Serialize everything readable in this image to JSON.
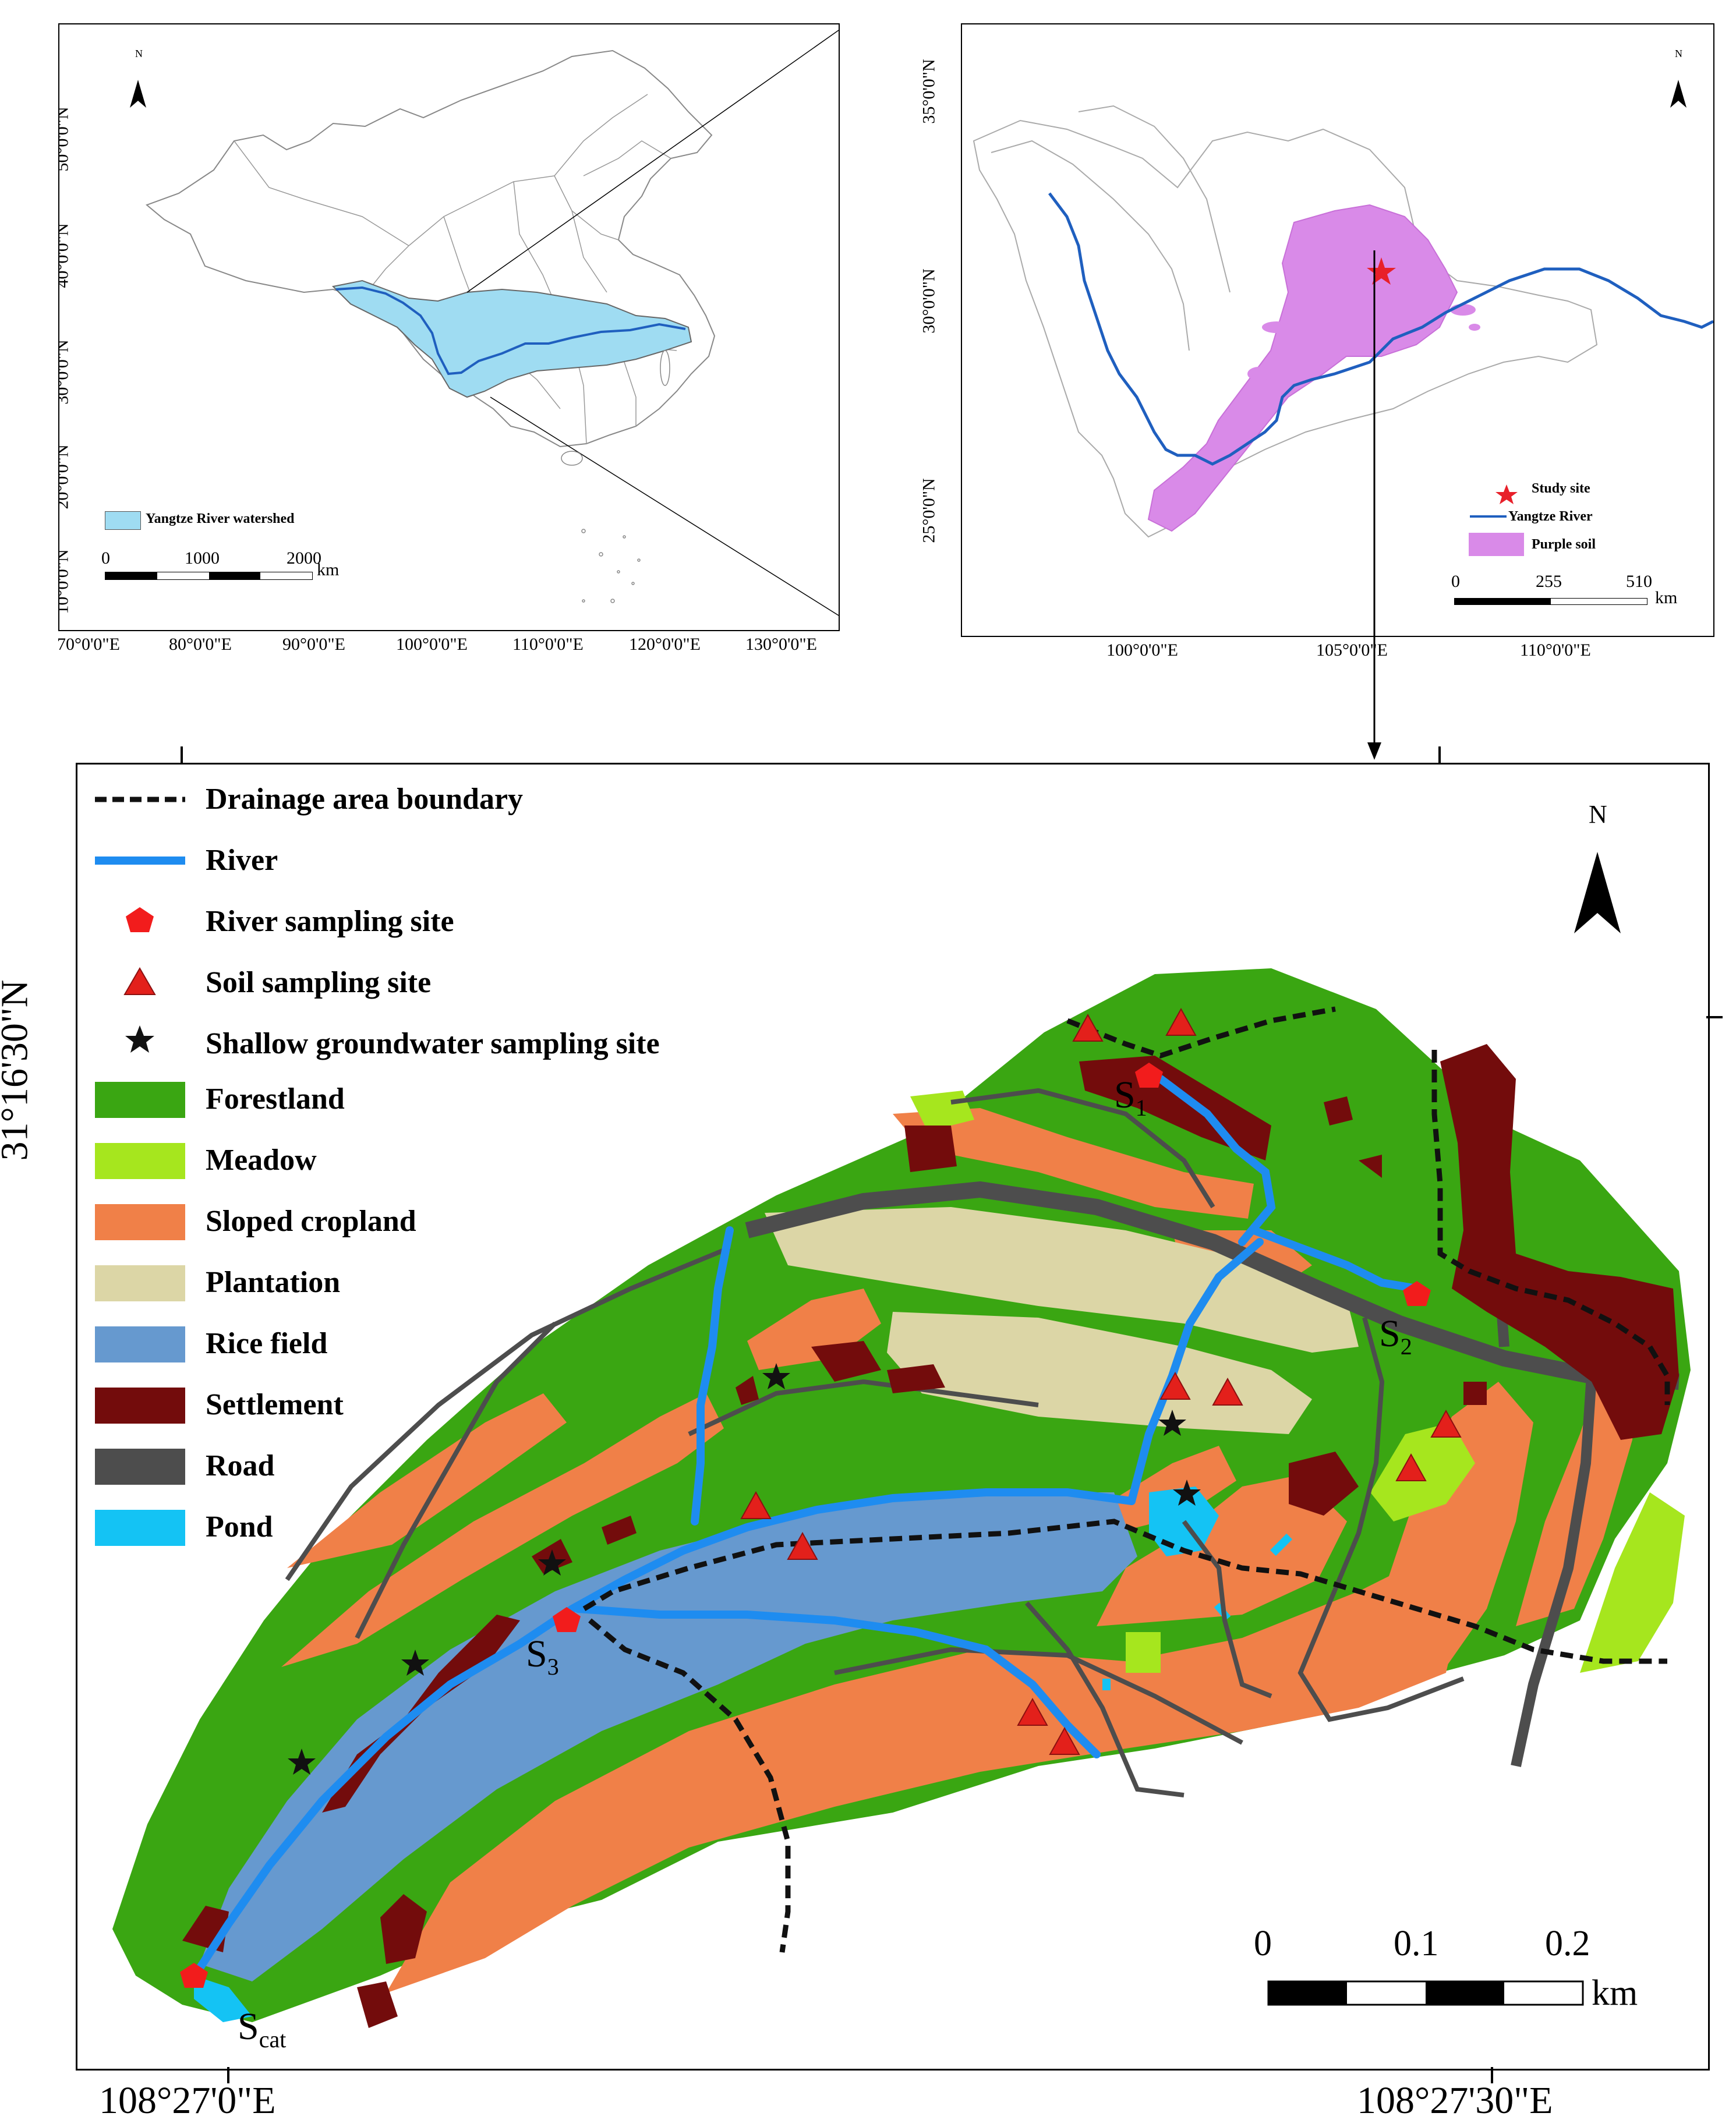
{
  "panel_a": {
    "legend_label": "Yangtze River watershed",
    "scale_ticks": [
      "0",
      "1000",
      "2000"
    ],
    "scale_unit": "km",
    "north_label": "N",
    "lat_ticks": [
      "50°0'0\"N",
      "40°0'0\"N",
      "30°0'0\"N",
      "20°0'0\"N",
      "10°0'0\"N"
    ],
    "lon_ticks": [
      "70°0'0\"E",
      "80°0'0\"E",
      "90°0'0\"E",
      "100°0'0\"E",
      "110°0'0\"E",
      "120°0'0\"E",
      "130°0'0\"E"
    ],
    "colors": {
      "watershed": "#9fdcf2",
      "river": "#1f5fbf",
      "border": "#777777"
    }
  },
  "panel_b": {
    "legend": {
      "study_site": "Study site",
      "river": "Yangtze River",
      "soil": "Purple soil"
    },
    "scale_ticks": [
      "0",
      "255",
      "510"
    ],
    "scale_unit": "km",
    "north_label": "N",
    "lat_ticks": [
      "35°0'0\"N",
      "30°0'0\"N",
      "25°0'0\"N"
    ],
    "lon_ticks": [
      "100°0'0\"E",
      "105°0'0\"E",
      "110°0'0\"E"
    ],
    "colors": {
      "purple_soil": "#d98ae8",
      "river": "#1f5fbf",
      "star": "#e8202a"
    }
  },
  "panel_c": {
    "north_label": "N",
    "lat_tick": "31°16'30\"N",
    "lon_ticks": [
      "108°27'0\"E",
      "108°27'30\"E"
    ],
    "scale_ticks": [
      "0",
      "0.1",
      "0.2"
    ],
    "scale_unit": "km",
    "site_labels": {
      "s1": "S",
      "s1_sub": "1",
      "s2": "S",
      "s2_sub": "2",
      "s3": "S",
      "s3_sub": "3",
      "scat": "S",
      "scat_sub": "cat"
    },
    "legend": [
      {
        "label": "Drainage area boundary",
        "kind": "dash",
        "color": "#111111"
      },
      {
        "label": "River",
        "kind": "line",
        "color": "#1e8cf0"
      },
      {
        "label": "River sampling site",
        "kind": "pentagon",
        "color": "#f21c1c"
      },
      {
        "label": "Soil sampling site",
        "kind": "triangle",
        "color": "#e3201b"
      },
      {
        "label": "Shallow groundwater sampling site",
        "kind": "star",
        "color": "#111111"
      },
      {
        "label": "Forestland",
        "kind": "box",
        "color": "#3aa612"
      },
      {
        "label": "Meadow",
        "kind": "box",
        "color": "#a6e61e"
      },
      {
        "label": "Sloped cropland",
        "kind": "box",
        "color": "#f08048"
      },
      {
        "label": "Plantation",
        "kind": "box",
        "color": "#dcd6a6"
      },
      {
        "label": "Rice field",
        "kind": "box",
        "color": "#6699cf"
      },
      {
        "label": "Settlement",
        "kind": "box",
        "color": "#730c0c"
      },
      {
        "label": "Road",
        "kind": "box",
        "color": "#4d4d4d"
      },
      {
        "label": "Pond",
        "kind": "box",
        "color": "#14c3f4"
      }
    ]
  }
}
